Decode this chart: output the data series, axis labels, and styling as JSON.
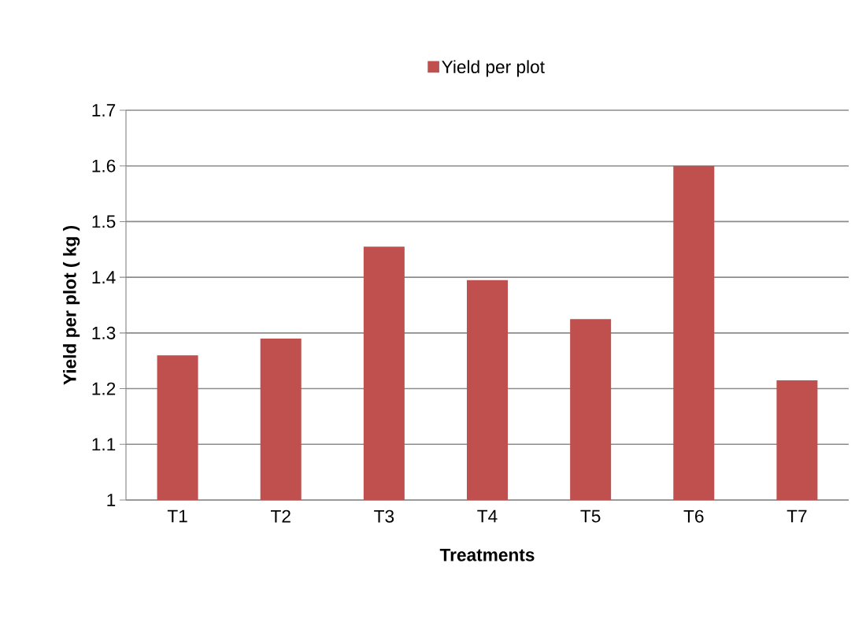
{
  "chart_data": {
    "type": "bar",
    "xlabel": "Treatments",
    "ylabel": "Yield per plot ( kg )",
    "categories": [
      "T1",
      "T2",
      "T3",
      "T4",
      "T5",
      "T6",
      "T7"
    ],
    "series": [
      {
        "name": "Yield per plot",
        "color": "#c0504d",
        "values": [
          1.26,
          1.29,
          1.455,
          1.395,
          1.325,
          1.6,
          1.215
        ]
      }
    ],
    "ylim": [
      1,
      1.7
    ],
    "yticks": [
      1,
      1.1,
      1.2,
      1.3,
      1.4,
      1.5,
      1.6,
      1.7
    ],
    "grid": "y",
    "legend": "top"
  }
}
